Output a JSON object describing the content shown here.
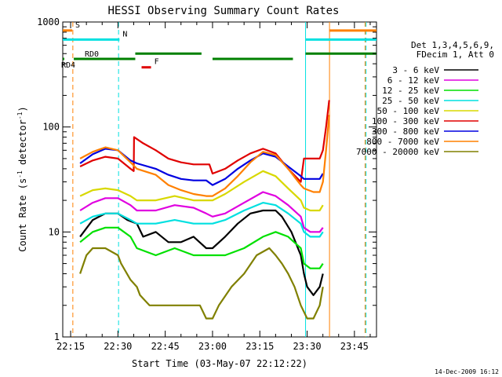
{
  "chart_data": {
    "type": "line",
    "title": "HESSI Observing Summary Count Rates",
    "xlabel": "Start Time (03-May-07 22:12:22)",
    "ylabel_main": "Count Rate (s",
    "ylabel_sup1": "-1",
    "ylabel_mid": " detector",
    "ylabel_sup2": "-1",
    "ylabel_end": ")",
    "yscale": "log",
    "xlim_min": [
      12.5,
      112
    ],
    "ylim": [
      1,
      1000
    ],
    "xticks": [
      {
        "m": 15,
        "label": "22:15"
      },
      {
        "m": 30,
        "label": "22:30"
      },
      {
        "m": 45,
        "label": "22:45"
      },
      {
        "m": 60,
        "label": "23:00"
      },
      {
        "m": 75,
        "label": "23:15"
      },
      {
        "m": 90,
        "label": "23:30"
      },
      {
        "m": 105,
        "label": "23:45"
      }
    ],
    "yticks": [
      {
        "v": 1,
        "label": "1"
      },
      {
        "v": 10,
        "label": "10"
      },
      {
        "v": 100,
        "label": "100"
      },
      {
        "v": 1000,
        "label": "1000"
      }
    ],
    "legend_header": [
      "Det 1,3,4,5,6,9,",
      "FDecim 1, Att 0"
    ],
    "legend_placement": "right",
    "series": [
      {
        "name": "3 - 6 keV",
        "color": "#000000",
        "x": [
          18,
          22,
          26,
          30,
          33,
          36,
          38,
          42,
          46,
          50,
          54,
          58,
          60,
          64,
          68,
          72,
          76,
          80,
          82,
          85,
          88,
          89,
          90,
          92,
          94,
          95
        ],
        "y": [
          9,
          13,
          15,
          15,
          13,
          12,
          9,
          10,
          8,
          8,
          9,
          7,
          7,
          9,
          12,
          15,
          16,
          16,
          14,
          10,
          6,
          4,
          3,
          2.5,
          3,
          4
        ]
      },
      {
        "name": "6 - 12 keV",
        "color": "#e000e0",
        "x": [
          18,
          22,
          26,
          30,
          34,
          36,
          42,
          48,
          54,
          58,
          60,
          64,
          70,
          76,
          80,
          84,
          88,
          89,
          91,
          94,
          95
        ],
        "y": [
          16,
          19,
          21,
          21,
          18,
          16,
          16,
          18,
          17,
          15,
          14,
          15,
          19,
          24,
          22,
          18,
          14,
          11,
          10,
          10,
          11
        ]
      },
      {
        "name": "12 - 25 keV",
        "color": "#00e000",
        "x": [
          18,
          22,
          26,
          30,
          34,
          36,
          42,
          48,
          54,
          58,
          60,
          64,
          70,
          76,
          80,
          84,
          88,
          89,
          91,
          94,
          95
        ],
        "y": [
          8,
          10,
          11,
          11,
          9,
          7,
          6,
          7,
          6,
          6,
          6,
          6,
          7,
          9,
          10,
          9,
          7,
          5,
          4.5,
          4.5,
          5
        ]
      },
      {
        "name": "25 - 50 keV",
        "color": "#00e0e0",
        "x": [
          18,
          22,
          26,
          30,
          34,
          36,
          42,
          48,
          54,
          58,
          60,
          64,
          70,
          76,
          80,
          84,
          88,
          89,
          91,
          94,
          95
        ],
        "y": [
          12,
          14,
          15,
          15,
          13,
          12,
          12,
          13,
          12,
          12,
          12,
          13,
          16,
          19,
          18,
          15,
          12,
          10,
          9,
          9,
          10
        ]
      },
      {
        "name": "50 - 100 keV",
        "color": "#d8d800",
        "x": [
          18,
          22,
          26,
          30,
          34,
          36,
          42,
          48,
          54,
          58,
          60,
          64,
          70,
          76,
          80,
          84,
          88,
          89,
          91,
          94,
          95
        ],
        "y": [
          22,
          25,
          26,
          25,
          22,
          20,
          20,
          22,
          20,
          20,
          20,
          23,
          30,
          38,
          34,
          26,
          20,
          17,
          16,
          16,
          18
        ]
      },
      {
        "name": "100 - 300 keV",
        "color": "#e00000",
        "x": [
          18,
          22,
          26,
          30,
          34,
          35,
          35.1,
          38,
          42,
          46,
          50,
          54,
          58,
          59,
          60,
          64,
          68,
          72,
          76,
          80,
          84,
          88,
          89,
          89.1,
          92,
          94,
          95,
          96,
          97
        ],
        "y": [
          42,
          48,
          52,
          50,
          40,
          38,
          80,
          70,
          60,
          50,
          46,
          44,
          44,
          44,
          36,
          40,
          48,
          56,
          62,
          56,
          40,
          30,
          50,
          50,
          50,
          50,
          60,
          100,
          180
        ]
      },
      {
        "name": "300 - 800 keV",
        "color": "#0000e0",
        "x": [
          18,
          22,
          26,
          30,
          34,
          36,
          42,
          46,
          50,
          54,
          58,
          60,
          64,
          68,
          72,
          76,
          80,
          84,
          88,
          89,
          92,
          94,
          95
        ],
        "y": [
          45,
          55,
          62,
          60,
          48,
          45,
          40,
          35,
          32,
          31,
          31,
          28,
          32,
          40,
          48,
          56,
          52,
          42,
          34,
          32,
          32,
          32,
          36
        ]
      },
      {
        "name": "800 - 7000 keV",
        "color": "#ff8000",
        "x": [
          18,
          22,
          26,
          30,
          34,
          36,
          42,
          46,
          50,
          54,
          58,
          60,
          64,
          68,
          72,
          76,
          80,
          84,
          88,
          89,
          92,
          94,
          95,
          96,
          97
        ],
        "y": [
          50,
          58,
          64,
          60,
          46,
          40,
          35,
          28,
          25,
          23,
          22,
          22,
          26,
          34,
          46,
          58,
          54,
          40,
          28,
          26,
          24,
          24,
          30,
          60,
          130
        ]
      },
      {
        "name": "7000 - 20000 keV",
        "color": "#808000",
        "x": [
          18,
          20,
          22,
          26,
          30,
          31,
          34,
          36,
          37,
          40,
          44,
          48,
          52,
          56,
          58,
          60,
          62,
          66,
          70,
          74,
          78,
          80,
          82,
          84,
          86,
          88,
          90,
          92,
          94,
          95
        ],
        "y": [
          4,
          6,
          7,
          7,
          6,
          5,
          3.5,
          3,
          2.5,
          2,
          2,
          2,
          2,
          2,
          1.5,
          1.5,
          2,
          3,
          4,
          6,
          7,
          6,
          5,
          4,
          3,
          2,
          1.5,
          1.5,
          2,
          3
        ]
      }
    ],
    "flags": [
      {
        "label": "S",
        "color": "#ff8000",
        "y": 830,
        "segments": [
          [
            12.5,
            15.5
          ],
          [
            97,
            112
          ]
        ]
      },
      {
        "label": "N",
        "color": "#00e0e0",
        "y": 680,
        "segments": [
          [
            12.5,
            30.5
          ],
          [
            89.5,
            112
          ]
        ]
      },
      {
        "label": "F",
        "color": "#e00000",
        "y": 370,
        "segments": [
          [
            37.5,
            40.5
          ]
        ]
      },
      {
        "label": "RD0",
        "color": "#008000",
        "y": 500,
        "segments": [
          [
            35.5,
            56.5
          ],
          [
            89.5,
            112
          ]
        ]
      },
      {
        "label": "RD4",
        "color": "#008000",
        "y": 445,
        "segments": [
          [
            12.5,
            13
          ],
          [
            16,
            35.5
          ],
          [
            60,
            85.5
          ]
        ]
      }
    ],
    "vlines": [
      {
        "m": 15.7,
        "color": "#ff8000",
        "style": "dashed"
      },
      {
        "m": 30.2,
        "color": "#00e0e0",
        "style": "dashed"
      },
      {
        "m": 89.5,
        "color": "#00e0e0",
        "style": "solid"
      },
      {
        "m": 97.1,
        "color": "#ff8000",
        "style": "solid"
      },
      {
        "m": 108.4,
        "color": "#ff8000",
        "style": "dashed"
      },
      {
        "m": 108.7,
        "color": "#00e0e0",
        "style": "dashed"
      }
    ],
    "grid": false
  },
  "footer": {
    "datestamp": "14-Dec-2009 16:12"
  }
}
